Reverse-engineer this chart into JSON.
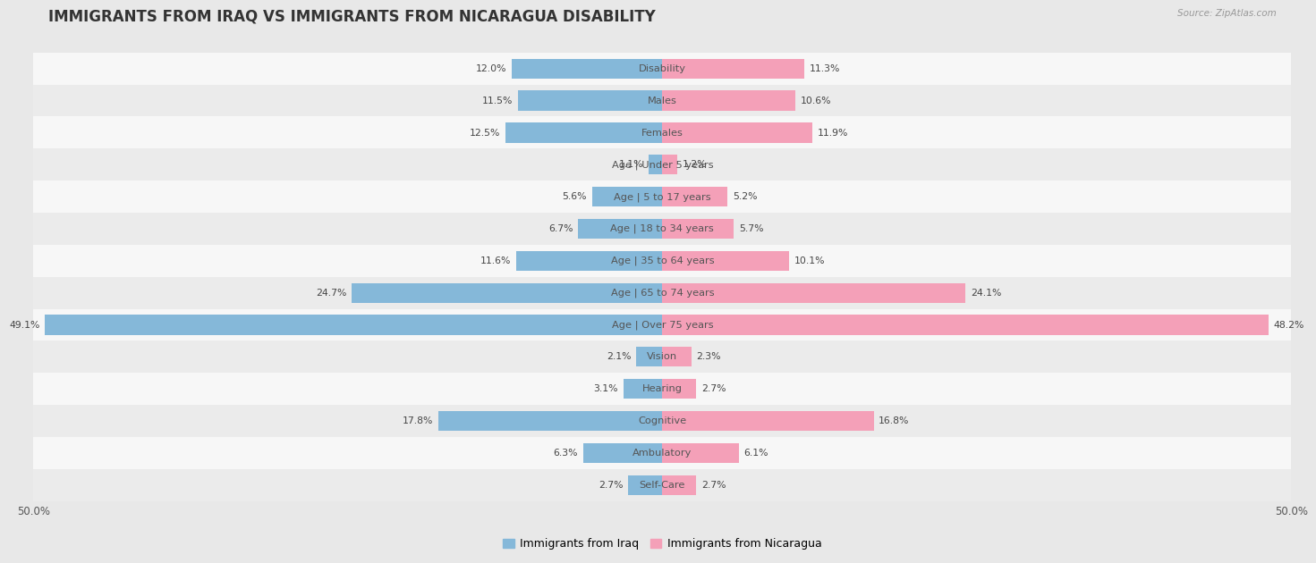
{
  "title": "IMMIGRANTS FROM IRAQ VS IMMIGRANTS FROM NICARAGUA DISABILITY",
  "source": "Source: ZipAtlas.com",
  "categories": [
    "Disability",
    "Males",
    "Females",
    "Age | Under 5 years",
    "Age | 5 to 17 years",
    "Age | 18 to 34 years",
    "Age | 35 to 64 years",
    "Age | 65 to 74 years",
    "Age | Over 75 years",
    "Vision",
    "Hearing",
    "Cognitive",
    "Ambulatory",
    "Self-Care"
  ],
  "iraq_values": [
    12.0,
    11.5,
    12.5,
    1.1,
    5.6,
    6.7,
    11.6,
    24.7,
    49.1,
    2.1,
    3.1,
    17.8,
    6.3,
    2.7
  ],
  "nicaragua_values": [
    11.3,
    10.6,
    11.9,
    1.2,
    5.2,
    5.7,
    10.1,
    24.1,
    48.2,
    2.3,
    2.7,
    16.8,
    6.1,
    2.7
  ],
  "iraq_color": "#85b8d9",
  "nicaragua_color": "#f4a0b8",
  "iraq_label": "Immigrants from Iraq",
  "nicaragua_label": "Immigrants from Nicaragua",
  "xlim": 50.0,
  "bg_outer": "#e8e8e8",
  "row_color_odd": "#f7f7f7",
  "row_color_even": "#ebebeb",
  "title_fontsize": 12,
  "bar_height": 0.62,
  "category_fontsize": 8.2,
  "value_label_fontsize": 7.8,
  "tick_fontsize": 8.5,
  "legend_fontsize": 9
}
